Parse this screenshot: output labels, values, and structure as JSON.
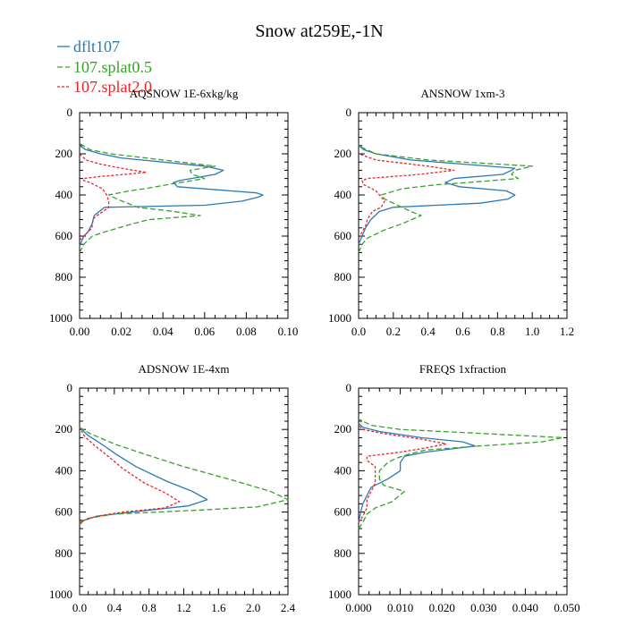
{
  "figure_title": "Snow at259E,-1N",
  "legend": [
    {
      "name": "dflt107",
      "color": "#2a7ab8",
      "dash": "solid"
    },
    {
      "name": "107.splat0.5",
      "color": "#3aa02c",
      "dash": "dashed"
    },
    {
      "name": "107.splat2.0",
      "color": "#e8252a",
      "dash": "dotted"
    }
  ],
  "chart_data": [
    {
      "type": "line",
      "title": "AQSNOW  1E-6xkg/kg",
      "xlim": [
        0,
        0.1
      ],
      "ylim": [
        1000,
        0
      ],
      "xticks": [
        0,
        0.02,
        0.04,
        0.06,
        0.08,
        0.1
      ],
      "xtick_labels": [
        "0.00",
        "0.02",
        "0.04",
        "0.06",
        "0.08",
        "0.10"
      ],
      "yticks": [
        0,
        200,
        400,
        600,
        800,
        1000
      ],
      "ytick_labels": [
        "0",
        "200",
        "400",
        "600",
        "800",
        "1000"
      ],
      "series": [
        {
          "name": "dflt107",
          "points": [
            [
              0,
              650
            ],
            [
              0.002,
              600
            ],
            [
              0.004,
              580
            ],
            [
              0.006,
              540
            ],
            [
              0.007,
              500
            ],
            [
              0.012,
              460
            ],
            [
              0.06,
              450
            ],
            [
              0.078,
              430
            ],
            [
              0.086,
              410
            ],
            [
              0.088,
              400
            ],
            [
              0.085,
              390
            ],
            [
              0.047,
              360
            ],
            [
              0.045,
              340
            ],
            [
              0.048,
              330
            ],
            [
              0.065,
              300
            ],
            [
              0.069,
              280
            ],
            [
              0.06,
              260
            ],
            [
              0.02,
              220
            ],
            [
              0.01,
              200
            ],
            [
              0.003,
              180
            ],
            [
              0,
              160
            ]
          ]
        },
        {
          "name": "107.splat0.5",
          "points": [
            [
              0,
              680
            ],
            [
              0.002,
              640
            ],
            [
              0.006,
              600
            ],
            [
              0.012,
              580
            ],
            [
              0.022,
              550
            ],
            [
              0.033,
              520
            ],
            [
              0.058,
              500
            ],
            [
              0.045,
              480
            ],
            [
              0.028,
              460
            ],
            [
              0.018,
              420
            ],
            [
              0.014,
              400
            ],
            [
              0.024,
              380
            ],
            [
              0.031,
              370
            ],
            [
              0.048,
              340
            ],
            [
              0.06,
              320
            ],
            [
              0.054,
              300
            ],
            [
              0.053,
              280
            ],
            [
              0.065,
              260
            ],
            [
              0.04,
              230
            ],
            [
              0.015,
              200
            ],
            [
              0.005,
              180
            ],
            [
              0,
              150
            ]
          ]
        },
        {
          "name": "107.splat2.0",
          "points": [
            [
              0,
              620
            ],
            [
              0.002,
              600
            ],
            [
              0.004,
              580
            ],
            [
              0.006,
              560
            ],
            [
              0.006,
              540
            ],
            [
              0.007,
              510
            ],
            [
              0.014,
              460
            ],
            [
              0.014,
              430
            ],
            [
              0.013,
              400
            ],
            [
              0.011,
              370
            ],
            [
              0.005,
              340
            ],
            [
              0.002,
              330
            ],
            [
              0.002,
              320
            ],
            [
              0.01,
              310
            ],
            [
              0.022,
              300
            ],
            [
              0.032,
              290
            ],
            [
              0.02,
              270
            ],
            [
              0.01,
              250
            ],
            [
              0.003,
              230
            ],
            [
              0,
              200
            ]
          ]
        }
      ]
    },
    {
      "type": "line",
      "title": "ANSNOW  1xm-3",
      "xlim": [
        0,
        1.2
      ],
      "ylim": [
        1000,
        0
      ],
      "xticks": [
        0,
        0.2,
        0.4,
        0.6,
        0.8,
        1.0,
        1.2
      ],
      "xtick_labels": [
        "0.0",
        "0.2",
        "0.4",
        "0.6",
        "0.8",
        "1.0",
        "1.2"
      ],
      "yticks": [
        0,
        200,
        400,
        600,
        800,
        1000
      ],
      "ytick_labels": [
        "0",
        "200",
        "400",
        "600",
        "800",
        "1000"
      ],
      "series": [
        {
          "name": "dflt107",
          "points": [
            [
              0,
              640
            ],
            [
              0.01,
              620
            ],
            [
              0.02,
              600
            ],
            [
              0.04,
              560
            ],
            [
              0.07,
              520
            ],
            [
              0.12,
              480
            ],
            [
              0.2,
              460
            ],
            [
              0.7,
              440
            ],
            [
              0.86,
              420
            ],
            [
              0.9,
              400
            ],
            [
              0.85,
              380
            ],
            [
              0.58,
              360
            ],
            [
              0.5,
              340
            ],
            [
              0.55,
              320
            ],
            [
              0.83,
              300
            ],
            [
              0.88,
              280
            ],
            [
              0.9,
              270
            ],
            [
              0.3,
              230
            ],
            [
              0.1,
              200
            ],
            [
              0.03,
              180
            ],
            [
              0,
              160
            ]
          ]
        },
        {
          "name": "107.splat0.5",
          "points": [
            [
              0,
              680
            ],
            [
              0.02,
              640
            ],
            [
              0.05,
              610
            ],
            [
              0.15,
              570
            ],
            [
              0.25,
              540
            ],
            [
              0.36,
              500
            ],
            [
              0.3,
              480
            ],
            [
              0.25,
              460
            ],
            [
              0.15,
              420
            ],
            [
              0.13,
              400
            ],
            [
              0.25,
              370
            ],
            [
              0.45,
              350
            ],
            [
              0.62,
              340
            ],
            [
              0.92,
              320
            ],
            [
              0.88,
              300
            ],
            [
              0.9,
              280
            ],
            [
              1.0,
              260
            ],
            [
              0.4,
              230
            ],
            [
              0.1,
              200
            ],
            [
              0.02,
              170
            ],
            [
              0,
              150
            ]
          ]
        },
        {
          "name": "107.splat2.0",
          "points": [
            [
              0,
              610
            ],
            [
              0.02,
              580
            ],
            [
              0.04,
              550
            ],
            [
              0.05,
              520
            ],
            [
              0.08,
              480
            ],
            [
              0.13,
              460
            ],
            [
              0.15,
              430
            ],
            [
              0.13,
              410
            ],
            [
              0.1,
              380
            ],
            [
              0.03,
              350
            ],
            [
              0.02,
              330
            ],
            [
              0.05,
              320
            ],
            [
              0.2,
              310
            ],
            [
              0.35,
              300
            ],
            [
              0.55,
              280
            ],
            [
              0.4,
              260
            ],
            [
              0.1,
              230
            ],
            [
              0,
              200
            ]
          ]
        }
      ]
    },
    {
      "type": "line",
      "title": "ADSNOW  1E-4xm",
      "xlim": [
        0,
        2.4
      ],
      "ylim": [
        1000,
        0
      ],
      "xticks": [
        0,
        0.4,
        0.8,
        1.2,
        1.6,
        2.0,
        2.4
      ],
      "xtick_labels": [
        "0.0",
        "0.4",
        "0.8",
        "1.2",
        "1.6",
        "2.0",
        "2.4"
      ],
      "yticks": [
        0,
        200,
        400,
        600,
        800,
        1000
      ],
      "ytick_labels": [
        "0",
        "200",
        "400",
        "600",
        "800",
        "1000"
      ],
      "series": [
        {
          "name": "dflt107",
          "points": [
            [
              0,
              660
            ],
            [
              0.05,
              640
            ],
            [
              0.2,
              620
            ],
            [
              0.6,
              600
            ],
            [
              1.25,
              570
            ],
            [
              1.47,
              540
            ],
            [
              1.3,
              500
            ],
            [
              1.0,
              450
            ],
            [
              0.65,
              380
            ],
            [
              0.42,
              320
            ],
            [
              0.25,
              270
            ],
            [
              0.1,
              230
            ],
            [
              0,
              190
            ]
          ]
        },
        {
          "name": "107.splat0.5",
          "points": [
            [
              0,
              650
            ],
            [
              0.1,
              630
            ],
            [
              0.4,
              610
            ],
            [
              1.4,
              590
            ],
            [
              2.05,
              575
            ],
            [
              2.4,
              540
            ],
            [
              2.2,
              500
            ],
            [
              1.8,
              450
            ],
            [
              1.2,
              380
            ],
            [
              0.75,
              320
            ],
            [
              0.4,
              270
            ],
            [
              0.12,
              220
            ],
            [
              0,
              190
            ]
          ]
        },
        {
          "name": "107.splat2.0",
          "points": [
            [
              0,
              660
            ],
            [
              0.05,
              640
            ],
            [
              0.2,
              620
            ],
            [
              0.5,
              600
            ],
            [
              0.98,
              580
            ],
            [
              1.15,
              550
            ],
            [
              1.0,
              510
            ],
            [
              0.75,
              460
            ],
            [
              0.5,
              390
            ],
            [
              0.3,
              320
            ],
            [
              0.15,
              270
            ],
            [
              0.05,
              230
            ],
            [
              0,
              190
            ]
          ]
        }
      ]
    },
    {
      "type": "line",
      "title": "FREQS  1xfraction",
      "xlim": [
        0,
        0.05
      ],
      "ylim": [
        1000,
        0
      ],
      "xticks": [
        0,
        0.01,
        0.02,
        0.03,
        0.04,
        0.05
      ],
      "xtick_labels": [
        "0.000",
        "0.010",
        "0.020",
        "0.030",
        "0.040",
        "0.050"
      ],
      "yticks": [
        0,
        200,
        400,
        600,
        800,
        1000
      ],
      "ytick_labels": [
        "0",
        "200",
        "400",
        "600",
        "800",
        "1000"
      ],
      "series": [
        {
          "name": "dflt107",
          "points": [
            [
              0,
              650
            ],
            [
              0.0005,
              600
            ],
            [
              0.001,
              560
            ],
            [
              0.002,
              520
            ],
            [
              0.003,
              480
            ],
            [
              0.007,
              440
            ],
            [
              0.01,
              400
            ],
            [
              0.01,
              360
            ],
            [
              0.011,
              330
            ],
            [
              0.016,
              310
            ],
            [
              0.028,
              280
            ],
            [
              0.025,
              260
            ],
            [
              0.015,
              240
            ],
            [
              0.005,
              210
            ],
            [
              0.001,
              190
            ],
            [
              0,
              170
            ]
          ]
        },
        {
          "name": "107.splat0.5",
          "points": [
            [
              0,
              680
            ],
            [
              0.001,
              650
            ],
            [
              0.002,
              610
            ],
            [
              0.004,
              580
            ],
            [
              0.008,
              550
            ],
            [
              0.011,
              500
            ],
            [
              0.006,
              470
            ],
            [
              0.005,
              440
            ],
            [
              0.005,
              400
            ],
            [
              0.007,
              360
            ],
            [
              0.009,
              340
            ],
            [
              0.012,
              320
            ],
            [
              0.016,
              300
            ],
            [
              0.029,
              280
            ],
            [
              0.044,
              260
            ],
            [
              0.049,
              240
            ],
            [
              0.03,
              220
            ],
            [
              0.01,
              200
            ],
            [
              0.003,
              180
            ],
            [
              0,
              150
            ]
          ]
        },
        {
          "name": "107.splat2.0",
          "points": [
            [
              0,
              650
            ],
            [
              0.001,
              620
            ],
            [
              0.002,
              580
            ],
            [
              0.002,
              540
            ],
            [
              0.003,
              500
            ],
            [
              0.004,
              460
            ],
            [
              0.004,
              420
            ],
            [
              0.004,
              380
            ],
            [
              0.002,
              350
            ],
            [
              0.002,
              330
            ],
            [
              0.01,
              310
            ],
            [
              0.016,
              290
            ],
            [
              0.021,
              270
            ],
            [
              0.016,
              250
            ],
            [
              0.006,
              220
            ],
            [
              0.001,
              200
            ],
            [
              0,
              180
            ]
          ]
        }
      ]
    }
  ]
}
